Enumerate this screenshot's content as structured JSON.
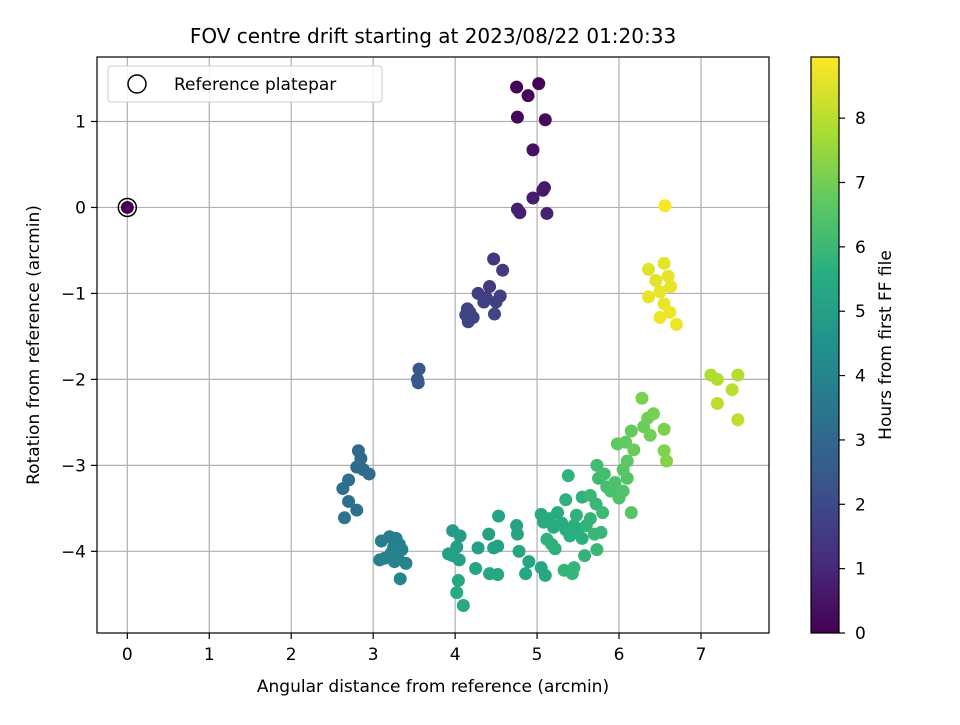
{
  "chart_data": {
    "type": "scatter",
    "title": "FOV centre drift starting at 2023/08/22 01:20:33",
    "xlabel": "Angular distance from reference (arcmin)",
    "ylabel": "Rotation from reference (arcmin)",
    "xlim": [
      -0.37,
      7.83
    ],
    "ylim": [
      -4.95,
      1.75
    ],
    "xticks": [
      0,
      1,
      2,
      3,
      4,
      5,
      6,
      7
    ],
    "yticks": [
      -4,
      -3,
      -2,
      -1,
      0,
      1
    ],
    "grid": true,
    "legend": {
      "placement": "top-left",
      "entries": [
        "Reference platepar"
      ]
    },
    "reference_point": {
      "x": 0,
      "y": 0
    },
    "colorbar": {
      "label": "Hours from first FF file",
      "colormap": "viridis",
      "range": [
        0,
        8.95
      ],
      "ticks": [
        0,
        1,
        2,
        3,
        4,
        5,
        6,
        7,
        8
      ]
    },
    "points": [
      {
        "x": 0.0,
        "y": 0.0,
        "h": 0.0
      },
      {
        "x": 4.75,
        "y": 1.4,
        "h": 0.05
      },
      {
        "x": 5.02,
        "y": 1.44,
        "h": 0.08
      },
      {
        "x": 4.89,
        "y": 1.3,
        "h": 0.12
      },
      {
        "x": 4.76,
        "y": 1.05,
        "h": 0.18
      },
      {
        "x": 5.1,
        "y": 1.02,
        "h": 0.25
      },
      {
        "x": 4.95,
        "y": 0.67,
        "h": 0.4
      },
      {
        "x": 5.07,
        "y": 0.2,
        "h": 0.6
      },
      {
        "x": 5.09,
        "y": 0.23,
        "h": 0.62
      },
      {
        "x": 4.95,
        "y": 0.11,
        "h": 0.7
      },
      {
        "x": 4.76,
        "y": -0.02,
        "h": 0.78
      },
      {
        "x": 4.79,
        "y": -0.06,
        "h": 0.8
      },
      {
        "x": 5.12,
        "y": -0.07,
        "h": 0.85
      },
      {
        "x": 4.47,
        "y": -0.6,
        "h": 1.45
      },
      {
        "x": 4.58,
        "y": -0.73,
        "h": 1.5
      },
      {
        "x": 4.42,
        "y": -0.92,
        "h": 1.55
      },
      {
        "x": 4.28,
        "y": -1.0,
        "h": 1.6
      },
      {
        "x": 4.38,
        "y": -1.05,
        "h": 1.62
      },
      {
        "x": 4.55,
        "y": -1.03,
        "h": 1.65
      },
      {
        "x": 4.5,
        "y": -1.1,
        "h": 1.68
      },
      {
        "x": 4.35,
        "y": -1.1,
        "h": 1.7
      },
      {
        "x": 4.15,
        "y": -1.18,
        "h": 1.72
      },
      {
        "x": 4.18,
        "y": -1.22,
        "h": 1.75
      },
      {
        "x": 4.13,
        "y": -1.25,
        "h": 1.78
      },
      {
        "x": 4.22,
        "y": -1.28,
        "h": 1.8
      },
      {
        "x": 4.16,
        "y": -1.33,
        "h": 1.82
      },
      {
        "x": 4.48,
        "y": -1.24,
        "h": 1.84
      },
      {
        "x": 3.56,
        "y": -1.88,
        "h": 2.4
      },
      {
        "x": 3.54,
        "y": -2.0,
        "h": 2.45
      },
      {
        "x": 3.55,
        "y": -2.04,
        "h": 2.48
      },
      {
        "x": 2.82,
        "y": -2.83,
        "h": 3.0
      },
      {
        "x": 2.85,
        "y": -2.92,
        "h": 3.05
      },
      {
        "x": 2.8,
        "y": -3.02,
        "h": 3.1
      },
      {
        "x": 2.88,
        "y": -3.05,
        "h": 3.12
      },
      {
        "x": 2.95,
        "y": -3.1,
        "h": 3.15
      },
      {
        "x": 2.7,
        "y": -3.17,
        "h": 3.2
      },
      {
        "x": 2.63,
        "y": -3.27,
        "h": 3.25
      },
      {
        "x": 2.7,
        "y": -3.42,
        "h": 3.3
      },
      {
        "x": 2.8,
        "y": -3.52,
        "h": 3.35
      },
      {
        "x": 2.65,
        "y": -3.61,
        "h": 3.4
      },
      {
        "x": 3.1,
        "y": -3.88,
        "h": 3.75
      },
      {
        "x": 3.2,
        "y": -3.83,
        "h": 3.78
      },
      {
        "x": 3.28,
        "y": -3.85,
        "h": 3.8
      },
      {
        "x": 3.32,
        "y": -3.92,
        "h": 3.82
      },
      {
        "x": 3.25,
        "y": -3.95,
        "h": 3.84
      },
      {
        "x": 3.35,
        "y": -3.98,
        "h": 3.86
      },
      {
        "x": 3.22,
        "y": -4.02,
        "h": 3.88
      },
      {
        "x": 3.3,
        "y": -4.05,
        "h": 3.9
      },
      {
        "x": 3.14,
        "y": -4.08,
        "h": 3.92
      },
      {
        "x": 3.08,
        "y": -4.1,
        "h": 3.94
      },
      {
        "x": 3.26,
        "y": -4.12,
        "h": 3.96
      },
      {
        "x": 3.4,
        "y": -4.14,
        "h": 3.98
      },
      {
        "x": 3.33,
        "y": -4.32,
        "h": 4.0
      },
      {
        "x": 3.97,
        "y": -3.76,
        "h": 4.9
      },
      {
        "x": 4.06,
        "y": -3.82,
        "h": 4.95
      },
      {
        "x": 4.02,
        "y": -3.95,
        "h": 5.0
      },
      {
        "x": 3.92,
        "y": -4.03,
        "h": 5.02
      },
      {
        "x": 3.97,
        "y": -4.05,
        "h": 5.04
      },
      {
        "x": 4.05,
        "y": -4.1,
        "h": 5.06
      },
      {
        "x": 4.28,
        "y": -3.96,
        "h": 5.08
      },
      {
        "x": 4.41,
        "y": -3.8,
        "h": 5.1
      },
      {
        "x": 4.47,
        "y": -3.96,
        "h": 5.12
      },
      {
        "x": 4.52,
        "y": -3.94,
        "h": 5.14
      },
      {
        "x": 4.53,
        "y": -3.59,
        "h": 5.16
      },
      {
        "x": 4.75,
        "y": -3.7,
        "h": 5.18
      },
      {
        "x": 4.76,
        "y": -3.8,
        "h": 5.2
      },
      {
        "x": 4.78,
        "y": -4.0,
        "h": 5.22
      },
      {
        "x": 4.9,
        "y": -4.12,
        "h": 5.24
      },
      {
        "x": 4.25,
        "y": -4.2,
        "h": 5.26
      },
      {
        "x": 4.42,
        "y": -4.26,
        "h": 5.28
      },
      {
        "x": 4.52,
        "y": -4.27,
        "h": 5.3
      },
      {
        "x": 4.86,
        "y": -4.26,
        "h": 5.32
      },
      {
        "x": 5.05,
        "y": -4.19,
        "h": 5.34
      },
      {
        "x": 5.1,
        "y": -4.28,
        "h": 5.36
      },
      {
        "x": 4.04,
        "y": -4.34,
        "h": 5.38
      },
      {
        "x": 4.02,
        "y": -4.48,
        "h": 5.4
      },
      {
        "x": 4.1,
        "y": -4.63,
        "h": 5.42
      },
      {
        "x": 5.05,
        "y": -3.57,
        "h": 5.44
      },
      {
        "x": 5.08,
        "y": -3.66,
        "h": 5.46
      },
      {
        "x": 5.15,
        "y": -3.62,
        "h": 5.48
      },
      {
        "x": 5.2,
        "y": -3.72,
        "h": 5.5
      },
      {
        "x": 5.25,
        "y": -3.55,
        "h": 5.52
      },
      {
        "x": 5.3,
        "y": -3.67,
        "h": 5.54
      },
      {
        "x": 5.35,
        "y": -3.75,
        "h": 5.56
      },
      {
        "x": 5.4,
        "y": -3.82,
        "h": 5.58
      },
      {
        "x": 5.45,
        "y": -3.7,
        "h": 5.6
      },
      {
        "x": 5.5,
        "y": -3.78,
        "h": 5.62
      },
      {
        "x": 5.55,
        "y": -3.85,
        "h": 5.64
      },
      {
        "x": 5.18,
        "y": -3.92,
        "h": 5.66
      },
      {
        "x": 5.22,
        "y": -3.97,
        "h": 5.68
      },
      {
        "x": 5.12,
        "y": -3.86,
        "h": 5.7
      },
      {
        "x": 5.35,
        "y": -3.4,
        "h": 5.72
      },
      {
        "x": 5.38,
        "y": -3.12,
        "h": 5.74
      },
      {
        "x": 5.55,
        "y": -3.37,
        "h": 5.76
      },
      {
        "x": 5.48,
        "y": -3.58,
        "h": 5.78
      },
      {
        "x": 5.6,
        "y": -3.7,
        "h": 5.8
      },
      {
        "x": 5.65,
        "y": -3.62,
        "h": 5.82
      },
      {
        "x": 5.58,
        "y": -4.05,
        "h": 5.84
      },
      {
        "x": 5.33,
        "y": -4.22,
        "h": 5.86
      },
      {
        "x": 5.43,
        "y": -4.26,
        "h": 5.88
      },
      {
        "x": 5.45,
        "y": -4.19,
        "h": 5.9
      },
      {
        "x": 5.7,
        "y": -3.8,
        "h": 5.92
      },
      {
        "x": 5.78,
        "y": -3.78,
        "h": 5.94
      },
      {
        "x": 5.73,
        "y": -3.98,
        "h": 5.96
      },
      {
        "x": 5.65,
        "y": -3.35,
        "h": 5.98
      },
      {
        "x": 5.72,
        "y": -3.45,
        "h": 6.0
      },
      {
        "x": 5.8,
        "y": -3.55,
        "h": 6.05
      },
      {
        "x": 5.75,
        "y": -3.15,
        "h": 6.1
      },
      {
        "x": 5.73,
        "y": -3.0,
        "h": 6.15
      },
      {
        "x": 5.82,
        "y": -3.1,
        "h": 6.2
      },
      {
        "x": 5.85,
        "y": -3.25,
        "h": 6.25
      },
      {
        "x": 5.9,
        "y": -3.3,
        "h": 6.3
      },
      {
        "x": 5.95,
        "y": -3.2,
        "h": 6.35
      },
      {
        "x": 6.0,
        "y": -3.38,
        "h": 6.4
      },
      {
        "x": 6.05,
        "y": -3.3,
        "h": 6.45
      },
      {
        "x": 6.1,
        "y": -3.15,
        "h": 6.5
      },
      {
        "x": 6.15,
        "y": -3.55,
        "h": 6.55
      },
      {
        "x": 6.05,
        "y": -3.05,
        "h": 6.6
      },
      {
        "x": 6.1,
        "y": -2.95,
        "h": 6.65
      },
      {
        "x": 5.98,
        "y": -2.75,
        "h": 6.7
      },
      {
        "x": 6.08,
        "y": -2.73,
        "h": 6.75
      },
      {
        "x": 6.15,
        "y": -2.6,
        "h": 6.8
      },
      {
        "x": 6.18,
        "y": -2.82,
        "h": 6.85
      },
      {
        "x": 6.3,
        "y": -2.55,
        "h": 6.9
      },
      {
        "x": 6.35,
        "y": -2.45,
        "h": 6.95
      },
      {
        "x": 6.38,
        "y": -2.65,
        "h": 7.0
      },
      {
        "x": 6.42,
        "y": -2.4,
        "h": 7.05
      },
      {
        "x": 6.28,
        "y": -2.22,
        "h": 7.1
      },
      {
        "x": 6.55,
        "y": -2.58,
        "h": 7.15
      },
      {
        "x": 6.55,
        "y": -2.83,
        "h": 7.2
      },
      {
        "x": 6.58,
        "y": -2.95,
        "h": 7.25
      },
      {
        "x": 7.12,
        "y": -1.95,
        "h": 7.85
      },
      {
        "x": 7.2,
        "y": -2.0,
        "h": 7.9
      },
      {
        "x": 7.45,
        "y": -1.95,
        "h": 7.95
      },
      {
        "x": 7.38,
        "y": -2.12,
        "h": 8.0
      },
      {
        "x": 7.2,
        "y": -2.28,
        "h": 8.05
      },
      {
        "x": 7.45,
        "y": -2.47,
        "h": 8.1
      },
      {
        "x": 6.36,
        "y": -0.72,
        "h": 8.5
      },
      {
        "x": 6.45,
        "y": -0.85,
        "h": 8.55
      },
      {
        "x": 6.55,
        "y": -0.65,
        "h": 8.6
      },
      {
        "x": 6.6,
        "y": -0.8,
        "h": 8.62
      },
      {
        "x": 6.63,
        "y": -0.92,
        "h": 8.64
      },
      {
        "x": 6.5,
        "y": -0.98,
        "h": 8.66
      },
      {
        "x": 6.36,
        "y": -1.04,
        "h": 8.68
      },
      {
        "x": 6.55,
        "y": -1.12,
        "h": 8.7
      },
      {
        "x": 6.62,
        "y": -1.22,
        "h": 8.72
      },
      {
        "x": 6.5,
        "y": -1.28,
        "h": 8.74
      },
      {
        "x": 6.7,
        "y": -1.36,
        "h": 8.76
      },
      {
        "x": 6.56,
        "y": 0.02,
        "h": 8.9
      }
    ]
  }
}
